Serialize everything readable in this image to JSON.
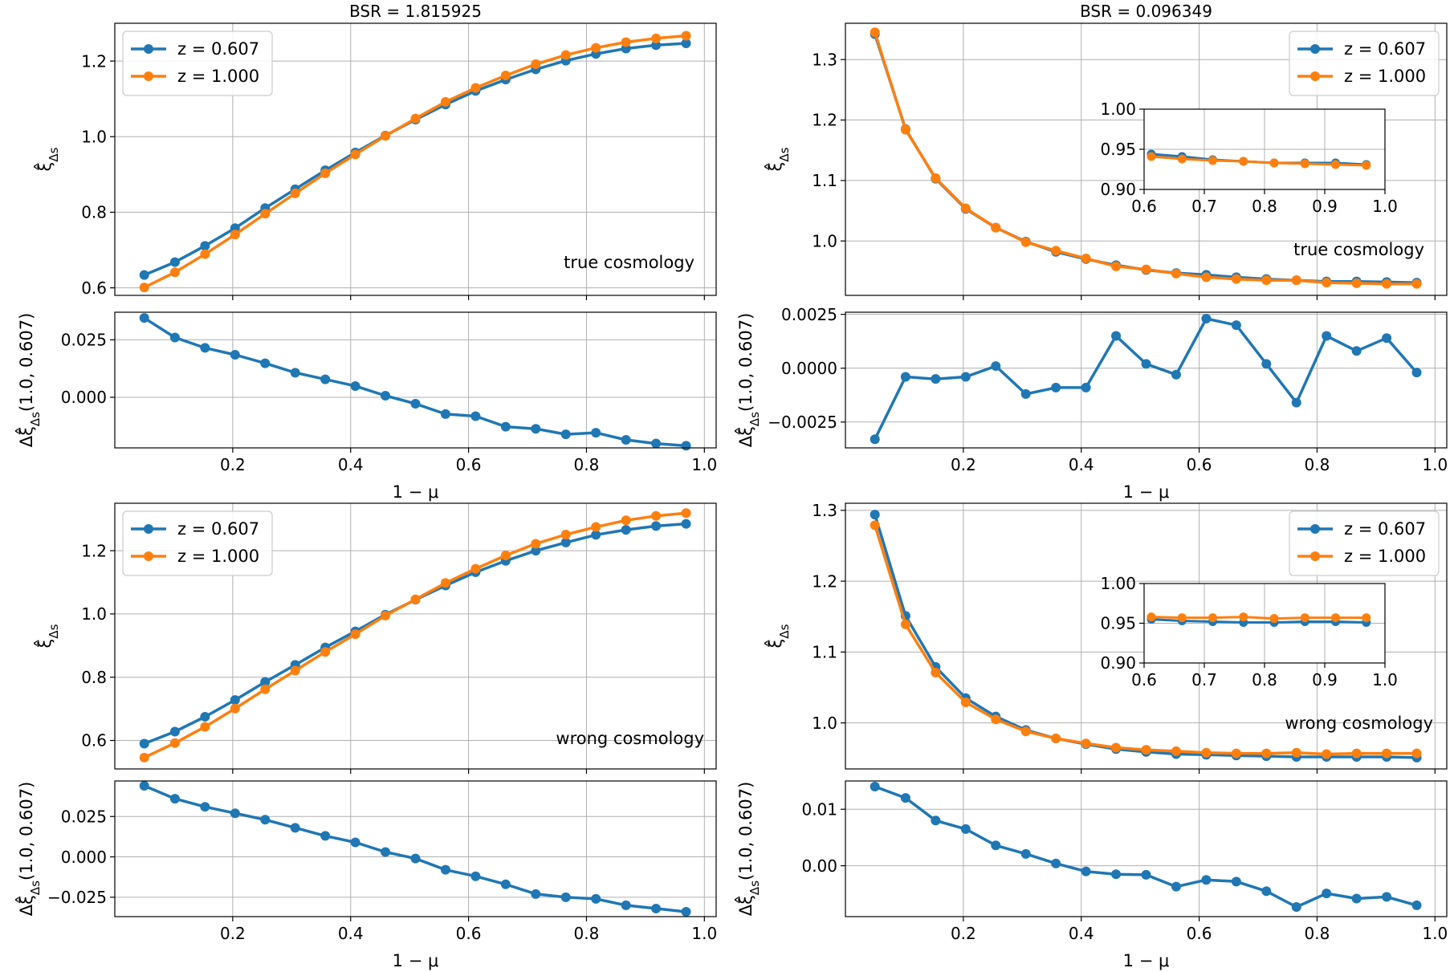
{
  "colors": {
    "z0607": "#1f77b4",
    "z1000": "#ff7f0e",
    "grid": "#b0b0b0",
    "axes": "#000000"
  },
  "chart_data": [
    {
      "id": "top-left-main",
      "type": "line",
      "title": "BSR = 1.815925",
      "ylabel": "ξ̂_Δs",
      "annotation": "true cosmology",
      "legend": "top-left",
      "grid": true,
      "xlim": [
        0.0,
        1.02
      ],
      "ylim": [
        0.58,
        1.3
      ],
      "yticks": [
        0.6,
        0.8,
        1.0,
        1.2
      ],
      "yticklabels": [
        "0.6",
        "0.8",
        "1.0",
        "1.2"
      ],
      "x": [
        0.05,
        0.102,
        0.153,
        0.204,
        0.255,
        0.306,
        0.357,
        0.408,
        0.459,
        0.51,
        0.561,
        0.612,
        0.663,
        0.714,
        0.765,
        0.816,
        0.867,
        0.918,
        0.969
      ],
      "series": [
        {
          "name": "z = 0.607",
          "values": [
            0.634,
            0.668,
            0.711,
            0.758,
            0.811,
            0.861,
            0.911,
            0.958,
            1.003,
            1.045,
            1.085,
            1.121,
            1.151,
            1.178,
            1.201,
            1.219,
            1.233,
            1.242,
            1.247
          ]
        },
        {
          "name": "z = 1.000",
          "values": [
            0.601,
            0.641,
            0.689,
            0.741,
            0.796,
            0.85,
            0.903,
            0.953,
            1.002,
            1.048,
            1.092,
            1.129,
            1.162,
            1.192,
            1.216,
            1.235,
            1.25,
            1.26,
            1.267
          ]
        }
      ]
    },
    {
      "id": "top-left-diff",
      "type": "line",
      "ylabel": "Δξ̂_Δs(1.0, 0.607)",
      "xlabel": "1 − μ",
      "grid": true,
      "xlim": [
        0.0,
        1.02
      ],
      "ylim": [
        -0.022,
        0.037
      ],
      "yticks": [
        0.0,
        0.025
      ],
      "yticklabels": [
        "0.000",
        "0.025"
      ],
      "xticks": [
        0.2,
        0.4,
        0.6,
        0.8,
        1.0
      ],
      "xticklabels": [
        "0.2",
        "0.4",
        "0.6",
        "0.8",
        "1.0"
      ],
      "x": [
        0.05,
        0.102,
        0.153,
        0.204,
        0.255,
        0.306,
        0.357,
        0.408,
        0.459,
        0.51,
        0.561,
        0.612,
        0.663,
        0.714,
        0.765,
        0.816,
        0.867,
        0.918,
        0.969
      ],
      "series": [
        {
          "name": "",
          "values": [
            0.0345,
            0.026,
            0.0215,
            0.0185,
            0.0148,
            0.0107,
            0.0078,
            0.0049,
            0.0007,
            -0.0028,
            -0.0073,
            -0.0082,
            -0.0128,
            -0.0137,
            -0.0161,
            -0.0154,
            -0.0185,
            -0.0201,
            -0.0211
          ]
        }
      ]
    },
    {
      "id": "top-right-main",
      "type": "line",
      "title": "BSR = 0.096349",
      "ylabel": "ξ̂_Δs",
      "annotation": "true cosmology",
      "legend": "top-right",
      "grid": true,
      "xlim": [
        0.0,
        1.02
      ],
      "ylim": [
        0.91,
        1.36
      ],
      "yticks": [
        1.0,
        1.1,
        1.2,
        1.3
      ],
      "yticklabels": [
        "1.0",
        "1.1",
        "1.2",
        "1.3"
      ],
      "x": [
        0.05,
        0.102,
        0.153,
        0.204,
        0.255,
        0.306,
        0.357,
        0.408,
        0.459,
        0.51,
        0.561,
        0.612,
        0.663,
        0.714,
        0.765,
        0.816,
        0.867,
        0.918,
        0.969
      ],
      "series": [
        {
          "name": "z = 0.607",
          "values": [
            1.342,
            1.185,
            1.103,
            1.053,
            1.022,
            0.999,
            0.982,
            0.97,
            0.96,
            0.952,
            0.947,
            0.944,
            0.94,
            0.937,
            0.935,
            0.933,
            0.933,
            0.932,
            0.931
          ]
        },
        {
          "name": "z = 1.000",
          "values": [
            1.345,
            1.184,
            1.104,
            1.054,
            1.022,
            0.998,
            0.984,
            0.971,
            0.958,
            0.953,
            0.946,
            0.94,
            0.937,
            0.935,
            0.935,
            0.931,
            0.93,
            0.929,
            0.929
          ]
        }
      ],
      "inset": {
        "xlim": [
          0.6,
          1.0
        ],
        "ylim": [
          0.9,
          1.0
        ],
        "xticks": [
          0.6,
          0.7,
          0.8,
          0.9,
          1.0
        ],
        "xticklabels": [
          "0.6",
          "0.7",
          "0.8",
          "0.9",
          "1.0"
        ],
        "yticks": [
          0.9,
          0.95,
          1.0
        ],
        "yticklabels": [
          "0.90",
          "0.95",
          "1.00"
        ],
        "x": [
          0.612,
          0.663,
          0.714,
          0.765,
          0.816,
          0.867,
          0.918,
          0.969
        ],
        "series": [
          {
            "name": "z = 0.607",
            "values": [
              0.944,
              0.941,
              0.937,
              0.935,
              0.933,
              0.933,
              0.933,
              0.931
            ]
          },
          {
            "name": "z = 1.000",
            "values": [
              0.941,
              0.938,
              0.936,
              0.935,
              0.933,
              0.932,
              0.931,
              0.93
            ]
          }
        ]
      }
    },
    {
      "id": "top-right-diff",
      "type": "line",
      "ylabel": "Δξ̂_Δs(1.0, 0.607)",
      "xlabel": "1 − μ",
      "grid": true,
      "xlim": [
        0.0,
        1.02
      ],
      "ylim": [
        -0.0037,
        0.0026
      ],
      "yticks": [
        -0.0025,
        0.0,
        0.0025
      ],
      "yticklabels": [
        "−0.0025",
        "0.0000",
        "0.0025"
      ],
      "xticks": [
        0.2,
        0.4,
        0.6,
        0.8,
        1.0
      ],
      "xticklabels": [
        "0.2",
        "0.4",
        "0.6",
        "0.8",
        "1.0"
      ],
      "x": [
        0.05,
        0.102,
        0.153,
        0.204,
        0.255,
        0.306,
        0.357,
        0.408,
        0.459,
        0.51,
        0.561,
        0.612,
        0.663,
        0.714,
        0.765,
        0.816,
        0.867,
        0.918,
        0.969
      ],
      "series": [
        {
          "name": "",
          "values": [
            -0.0033,
            -0.0004,
            -0.0005,
            -0.0004,
            0.0001,
            -0.0012,
            -0.0009,
            -0.0009,
            0.0015,
            0.0002,
            -0.0003,
            0.0023,
            0.002,
            0.0002,
            -0.0016,
            0.0015,
            0.0008,
            0.0014,
            -0.0002
          ]
        }
      ]
    },
    {
      "id": "bottom-left-main",
      "type": "line",
      "ylabel": "ξ̂_Δs",
      "annotation": "wrong cosmology",
      "legend": "top-left",
      "grid": true,
      "xlim": [
        0.0,
        1.02
      ],
      "ylim": [
        0.51,
        1.35
      ],
      "yticks": [
        0.6,
        0.8,
        1.0,
        1.2
      ],
      "yticklabels": [
        "0.6",
        "0.8",
        "1.0",
        "1.2"
      ],
      "x": [
        0.05,
        0.102,
        0.153,
        0.204,
        0.255,
        0.306,
        0.357,
        0.408,
        0.459,
        0.51,
        0.561,
        0.612,
        0.663,
        0.714,
        0.765,
        0.816,
        0.867,
        0.918,
        0.969
      ],
      "series": [
        {
          "name": "z = 0.607",
          "values": [
            0.59,
            0.628,
            0.675,
            0.728,
            0.785,
            0.839,
            0.894,
            0.945,
            0.998,
            1.045,
            1.09,
            1.132,
            1.168,
            1.2,
            1.226,
            1.25,
            1.266,
            1.278,
            1.285
          ]
        },
        {
          "name": "z = 1.000",
          "values": [
            0.546,
            0.592,
            0.643,
            0.701,
            0.762,
            0.821,
            0.88,
            0.936,
            0.995,
            1.046,
            1.098,
            1.143,
            1.185,
            1.222,
            1.251,
            1.275,
            1.296,
            1.31,
            1.319
          ]
        }
      ]
    },
    {
      "id": "bottom-left-diff",
      "type": "line",
      "ylabel": "Δξ̂_Δs(1.0, 0.607)",
      "xlabel": "1 − μ",
      "grid": true,
      "xlim": [
        0.0,
        1.02
      ],
      "ylim": [
        -0.037,
        0.047
      ],
      "yticks": [
        -0.025,
        0.0,
        0.025
      ],
      "yticklabels": [
        "−0.025",
        "0.000",
        "0.025"
      ],
      "xticks": [
        0.2,
        0.4,
        0.6,
        0.8,
        1.0
      ],
      "xticklabels": [
        "0.2",
        "0.4",
        "0.6",
        "0.8",
        "1.0"
      ],
      "x": [
        0.05,
        0.102,
        0.153,
        0.204,
        0.255,
        0.306,
        0.357,
        0.408,
        0.459,
        0.51,
        0.561,
        0.612,
        0.663,
        0.714,
        0.765,
        0.816,
        0.867,
        0.918,
        0.969
      ],
      "series": [
        {
          "name": "",
          "values": [
            0.044,
            0.036,
            0.031,
            0.027,
            0.023,
            0.018,
            0.013,
            0.009,
            0.003,
            -0.001,
            -0.008,
            -0.012,
            -0.017,
            -0.023,
            -0.025,
            -0.026,
            -0.03,
            -0.032,
            -0.034
          ]
        }
      ]
    },
    {
      "id": "bottom-right-main",
      "type": "line",
      "ylabel": "ξ̂_Δs",
      "annotation": "wrong cosmology",
      "legend": "top-right",
      "grid": true,
      "xlim": [
        0.0,
        1.02
      ],
      "ylim": [
        0.935,
        1.31
      ],
      "yticks": [
        1.0,
        1.1,
        1.2,
        1.3
      ],
      "yticklabels": [
        "1.0",
        "1.1",
        "1.2",
        "1.3"
      ],
      "x": [
        0.05,
        0.102,
        0.153,
        0.204,
        0.255,
        0.306,
        0.357,
        0.408,
        0.459,
        0.51,
        0.561,
        0.612,
        0.663,
        0.714,
        0.765,
        0.816,
        0.867,
        0.918,
        0.969
      ],
      "series": [
        {
          "name": "z = 0.607",
          "values": [
            1.294,
            1.151,
            1.079,
            1.035,
            1.009,
            0.99,
            0.978,
            0.97,
            0.963,
            0.959,
            0.956,
            0.955,
            0.954,
            0.953,
            0.952,
            0.952,
            0.952,
            0.952,
            0.951
          ]
        },
        {
          "name": "z = 1.000",
          "values": [
            1.279,
            1.139,
            1.071,
            1.029,
            1.005,
            0.988,
            0.978,
            0.971,
            0.965,
            0.962,
            0.96,
            0.958,
            0.957,
            0.957,
            0.958,
            0.956,
            0.957,
            0.957,
            0.957
          ]
        }
      ],
      "inset": {
        "xlim": [
          0.6,
          1.0
        ],
        "ylim": [
          0.9,
          1.0
        ],
        "xticks": [
          0.6,
          0.7,
          0.8,
          0.9,
          1.0
        ],
        "xticklabels": [
          "0.6",
          "0.7",
          "0.8",
          "0.9",
          "1.0"
        ],
        "yticks": [
          0.9,
          0.95,
          1.0
        ],
        "yticklabels": [
          "0.90",
          "0.95",
          "1.00"
        ],
        "x": [
          0.612,
          0.663,
          0.714,
          0.765,
          0.816,
          0.867,
          0.918,
          0.969
        ],
        "series": [
          {
            "name": "z = 0.607",
            "values": [
              0.955,
              0.953,
              0.952,
              0.951,
              0.951,
              0.952,
              0.952,
              0.951
            ]
          },
          {
            "name": "z = 1.000",
            "values": [
              0.958,
              0.957,
              0.957,
              0.958,
              0.956,
              0.957,
              0.957,
              0.957
            ]
          }
        ]
      }
    },
    {
      "id": "bottom-right-diff",
      "type": "line",
      "ylabel": "Δξ̂_Δs(1.0, 0.607)",
      "xlabel": "1 − μ",
      "grid": true,
      "xlim": [
        0.0,
        1.02
      ],
      "ylim": [
        -0.009,
        0.015
      ],
      "yticks": [
        0.0,
        0.01
      ],
      "yticklabels": [
        "0.00",
        "0.01"
      ],
      "xticks": [
        0.2,
        0.4,
        0.6,
        0.8,
        1.0
      ],
      "xticklabels": [
        "0.2",
        "0.4",
        "0.6",
        "0.8",
        "1.0"
      ],
      "x": [
        0.05,
        0.102,
        0.153,
        0.204,
        0.255,
        0.306,
        0.357,
        0.408,
        0.459,
        0.51,
        0.561,
        0.612,
        0.663,
        0.714,
        0.765,
        0.816,
        0.867,
        0.918,
        0.969
      ],
      "series": [
        {
          "name": "",
          "values": [
            0.014,
            0.012,
            0.008,
            0.0065,
            0.0036,
            0.0021,
            0.0004,
            -0.001,
            -0.0015,
            -0.0016,
            -0.0037,
            -0.0025,
            -0.0028,
            -0.0045,
            -0.0073,
            -0.0049,
            -0.0058,
            -0.0055,
            -0.007
          ]
        }
      ]
    }
  ]
}
